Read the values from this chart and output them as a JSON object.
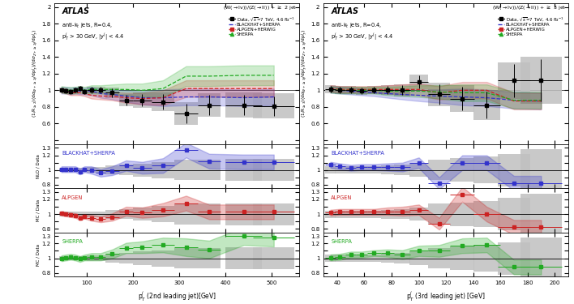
{
  "left": {
    "xlabel": "p$_{T}^{j}$ (2nd leading jet)[GeV]",
    "ylabel_main": "(1/R$_{\\geq2}$)(d$\\sigma_{W+\\geq2j}$/dp$_{T}^{j}$)/(d$\\sigma_{Z+\\geq2j}$/dp$_{T}^{j}$)",
    "title_text": "(W($\\rightarrow$lv))/(Z($\\rightarrow$l$^{}$l)) + $\\geq$ 2 jet",
    "info_line1": "anti-k$_{t}$ jets, R=0.4,",
    "info_line2": "p$_{T}^{j}$ > 30 GeV, |y$^{j}$| < 4.4",
    "xlim": [
      30,
      560
    ],
    "ylim_main": [
      0.35,
      2.05
    ],
    "ylim_ratio": [
      0.75,
      1.35
    ],
    "data_x": [
      45,
      55,
      65,
      75,
      85,
      95,
      110,
      130,
      155,
      185,
      220,
      265,
      315,
      365,
      440,
      505
    ],
    "data_y": [
      1.0,
      0.99,
      0.98,
      1.0,
      1.02,
      0.98,
      1.0,
      1.0,
      0.97,
      0.88,
      0.88,
      0.86,
      0.72,
      0.82,
      0.82,
      0.81
    ],
    "data_xerr": [
      5,
      5,
      5,
      5,
      5,
      5,
      10,
      10,
      15,
      15,
      20,
      25,
      25,
      25,
      40,
      45
    ],
    "data_yerr": [
      0.03,
      0.03,
      0.03,
      0.03,
      0.03,
      0.03,
      0.04,
      0.04,
      0.05,
      0.06,
      0.07,
      0.09,
      0.12,
      0.12,
      0.12,
      0.12
    ],
    "data_sys_lo": [
      0.03,
      0.03,
      0.03,
      0.03,
      0.03,
      0.03,
      0.04,
      0.04,
      0.06,
      0.07,
      0.09,
      0.11,
      0.14,
      0.14,
      0.15,
      0.15
    ],
    "data_sys_hi": [
      0.03,
      0.03,
      0.03,
      0.03,
      0.03,
      0.03,
      0.04,
      0.04,
      0.06,
      0.07,
      0.09,
      0.11,
      0.14,
      0.14,
      0.15,
      0.15
    ],
    "bhs_x": [
      45,
      55,
      65,
      75,
      85,
      95,
      110,
      130,
      155,
      185,
      220,
      265,
      315,
      365,
      440,
      505
    ],
    "bhs_y": [
      1.0,
      1.0,
      0.99,
      1.0,
      0.99,
      0.99,
      0.99,
      0.96,
      0.95,
      0.93,
      0.91,
      0.91,
      0.92,
      0.92,
      0.91,
      0.92
    ],
    "bhs_band_lo": [
      0.04,
      0.04,
      0.04,
      0.04,
      0.04,
      0.04,
      0.05,
      0.05,
      0.06,
      0.07,
      0.08,
      0.1,
      0.1,
      0.1,
      0.1,
      0.1
    ],
    "bhs_band_hi": [
      0.04,
      0.04,
      0.04,
      0.04,
      0.04,
      0.04,
      0.05,
      0.05,
      0.06,
      0.07,
      0.08,
      0.1,
      0.1,
      0.1,
      0.1,
      0.1
    ],
    "alp_x": [
      45,
      55,
      65,
      75,
      85,
      95,
      110,
      130,
      155,
      185,
      220,
      265,
      315,
      365,
      440,
      505
    ],
    "alp_y": [
      1.0,
      0.99,
      0.97,
      0.97,
      0.97,
      0.96,
      0.94,
      0.93,
      0.93,
      0.91,
      0.9,
      0.91,
      1.02,
      1.02,
      1.02,
      1.02
    ],
    "alp_band_lo": [
      0.03,
      0.03,
      0.03,
      0.03,
      0.03,
      0.03,
      0.04,
      0.04,
      0.05,
      0.06,
      0.07,
      0.09,
      0.1,
      0.1,
      0.1,
      0.1
    ],
    "alp_band_hi": [
      0.03,
      0.03,
      0.03,
      0.03,
      0.03,
      0.03,
      0.04,
      0.04,
      0.05,
      0.06,
      0.07,
      0.09,
      0.1,
      0.1,
      0.1,
      0.1
    ],
    "shp_x": [
      45,
      55,
      65,
      75,
      85,
      95,
      110,
      130,
      155,
      185,
      220,
      265,
      315,
      365,
      440,
      505
    ],
    "shp_y": [
      1.01,
      1.0,
      1.0,
      1.0,
      1.01,
      1.0,
      1.01,
      1.01,
      1.01,
      1.01,
      1.0,
      1.02,
      1.17,
      1.17,
      1.18,
      1.18
    ],
    "shp_band_lo": [
      0.04,
      0.04,
      0.04,
      0.04,
      0.04,
      0.04,
      0.05,
      0.05,
      0.06,
      0.07,
      0.08,
      0.1,
      0.12,
      0.12,
      0.12,
      0.12
    ],
    "shp_band_hi": [
      0.04,
      0.04,
      0.04,
      0.04,
      0.04,
      0.04,
      0.05,
      0.05,
      0.06,
      0.07,
      0.08,
      0.1,
      0.12,
      0.12,
      0.12,
      0.12
    ],
    "ratio_bhs_x": [
      45,
      55,
      65,
      75,
      85,
      95,
      110,
      130,
      155,
      185,
      220,
      265,
      315,
      365,
      440,
      505
    ],
    "ratio_bhs_y": [
      1.01,
      1.01,
      1.01,
      1.01,
      0.98,
      1.01,
      1.0,
      0.96,
      0.99,
      1.06,
      1.03,
      1.06,
      1.27,
      1.12,
      1.11,
      1.11
    ],
    "ratio_bhs_band_lo": [
      0.04,
      0.04,
      0.04,
      0.04,
      0.04,
      0.04,
      0.05,
      0.05,
      0.06,
      0.07,
      0.08,
      0.1,
      0.1,
      0.1,
      0.1,
      0.1
    ],
    "ratio_bhs_band_hi": [
      0.04,
      0.04,
      0.04,
      0.04,
      0.04,
      0.04,
      0.05,
      0.05,
      0.06,
      0.07,
      0.08,
      0.1,
      0.1,
      0.1,
      0.1,
      0.1
    ],
    "ratio_alp_x": [
      45,
      55,
      65,
      75,
      85,
      95,
      110,
      130,
      155,
      185,
      220,
      265,
      315,
      365,
      440,
      505
    ],
    "ratio_alp_y": [
      1.01,
      1.0,
      0.99,
      0.98,
      0.95,
      0.97,
      0.95,
      0.93,
      0.96,
      1.04,
      1.02,
      1.06,
      1.15,
      1.03,
      1.03,
      1.03
    ],
    "ratio_alp_band_lo": [
      0.03,
      0.03,
      0.03,
      0.03,
      0.03,
      0.03,
      0.04,
      0.04,
      0.05,
      0.06,
      0.07,
      0.09,
      0.1,
      0.1,
      0.1,
      0.1
    ],
    "ratio_alp_band_hi": [
      0.03,
      0.03,
      0.03,
      0.03,
      0.03,
      0.03,
      0.04,
      0.04,
      0.05,
      0.06,
      0.07,
      0.09,
      0.1,
      0.1,
      0.1,
      0.1
    ],
    "ratio_shp_x": [
      45,
      55,
      65,
      75,
      85,
      95,
      110,
      130,
      155,
      185,
      220,
      265,
      315,
      365,
      440,
      505
    ],
    "ratio_shp_y": [
      1.0,
      1.01,
      1.02,
      1.01,
      0.99,
      1.01,
      1.02,
      1.02,
      1.06,
      1.14,
      1.15,
      1.18,
      1.15,
      1.12,
      1.3,
      1.28
    ],
    "ratio_shp_band_lo": [
      0.04,
      0.04,
      0.04,
      0.04,
      0.04,
      0.04,
      0.05,
      0.05,
      0.06,
      0.07,
      0.08,
      0.1,
      0.12,
      0.12,
      0.12,
      0.12
    ],
    "ratio_shp_band_hi": [
      0.04,
      0.04,
      0.04,
      0.04,
      0.04,
      0.04,
      0.05,
      0.05,
      0.06,
      0.07,
      0.08,
      0.1,
      0.12,
      0.12,
      0.12,
      0.12
    ]
  },
  "right": {
    "xlabel": "p$_{T}^{j}$ (3rd leading jet) [GeV]",
    "ylabel_main": "(1/R$_{\\geq3}$)(d$\\sigma_{W+\\geq3j}$/dp$_{T}^{j}$)/(d$\\sigma_{Z+\\geq3j}$/dp$_{T}^{j}$)",
    "title_text": "(W($\\rightarrow$lv))/(Z($\\rightarrow$l$^{}$l)) + $\\geq$ 3 jet",
    "info_line1": "anti-k$_{t}$ jets, R=0.4,",
    "info_line2": "p$_{T}^{j}$ > 30 GeV, |y$^{j}$| < 4.4",
    "xlim": [
      30,
      210
    ],
    "ylim_main": [
      0.35,
      2.05
    ],
    "ylim_ratio": [
      0.75,
      1.35
    ],
    "data_x": [
      35,
      42,
      50,
      58,
      67,
      77,
      88,
      100,
      115,
      132,
      150,
      170,
      190
    ],
    "data_y": [
      1.01,
      1.0,
      1.0,
      0.99,
      1.0,
      1.0,
      1.0,
      1.1,
      0.95,
      0.9,
      0.82,
      1.12,
      1.12
    ],
    "data_xerr": [
      4,
      4,
      4,
      4,
      5,
      5,
      6,
      7,
      8,
      9,
      10,
      12,
      15
    ],
    "data_yerr": [
      0.04,
      0.04,
      0.04,
      0.04,
      0.04,
      0.05,
      0.06,
      0.08,
      0.12,
      0.14,
      0.16,
      0.2,
      0.25
    ],
    "data_sys_lo": [
      0.05,
      0.05,
      0.05,
      0.05,
      0.05,
      0.06,
      0.07,
      0.09,
      0.14,
      0.16,
      0.18,
      0.22,
      0.28
    ],
    "data_sys_hi": [
      0.05,
      0.05,
      0.05,
      0.05,
      0.05,
      0.06,
      0.07,
      0.09,
      0.14,
      0.16,
      0.18,
      0.22,
      0.28
    ],
    "bhs_x": [
      35,
      42,
      50,
      58,
      67,
      77,
      88,
      100,
      115,
      132,
      150,
      170,
      190
    ],
    "bhs_y": [
      1.01,
      1.0,
      0.99,
      0.98,
      0.97,
      0.96,
      0.95,
      0.94,
      0.93,
      0.92,
      0.91,
      0.88,
      0.87
    ],
    "bhs_band_lo": [
      0.04,
      0.04,
      0.04,
      0.04,
      0.04,
      0.05,
      0.06,
      0.07,
      0.08,
      0.1,
      0.1,
      0.1,
      0.1
    ],
    "bhs_band_hi": [
      0.04,
      0.04,
      0.04,
      0.04,
      0.04,
      0.05,
      0.06,
      0.07,
      0.08,
      0.1,
      0.1,
      0.1,
      0.1
    ],
    "alp_x": [
      35,
      42,
      50,
      58,
      67,
      77,
      88,
      100,
      115,
      132,
      150,
      170,
      190
    ],
    "alp_y": [
      1.02,
      1.01,
      1.01,
      1.01,
      1.01,
      1.01,
      1.01,
      1.01,
      0.97,
      1.0,
      1.0,
      0.87,
      0.87
    ],
    "alp_band_lo": [
      0.04,
      0.04,
      0.04,
      0.04,
      0.04,
      0.05,
      0.06,
      0.07,
      0.08,
      0.1,
      0.1,
      0.1,
      0.1
    ],
    "alp_band_hi": [
      0.04,
      0.04,
      0.04,
      0.04,
      0.04,
      0.05,
      0.06,
      0.07,
      0.08,
      0.1,
      0.1,
      0.1,
      0.1
    ],
    "shp_x": [
      35,
      42,
      50,
      58,
      67,
      77,
      88,
      100,
      115,
      132,
      150,
      170,
      190
    ],
    "shp_y": [
      1.01,
      1.0,
      1.0,
      1.0,
      1.0,
      0.99,
      0.99,
      0.99,
      0.98,
      0.97,
      0.97,
      0.88,
      0.88
    ],
    "shp_band_lo": [
      0.04,
      0.04,
      0.04,
      0.04,
      0.04,
      0.05,
      0.06,
      0.07,
      0.08,
      0.1,
      0.1,
      0.1,
      0.1
    ],
    "shp_band_hi": [
      0.04,
      0.04,
      0.04,
      0.04,
      0.04,
      0.05,
      0.06,
      0.07,
      0.08,
      0.1,
      0.1,
      0.1,
      0.1
    ],
    "ratio_bhs_x": [
      35,
      42,
      50,
      58,
      67,
      77,
      88,
      100,
      115,
      132,
      150,
      170,
      190
    ],
    "ratio_bhs_y": [
      1.07,
      1.05,
      1.03,
      1.04,
      1.04,
      1.04,
      1.04,
      1.1,
      0.82,
      1.1,
      1.1,
      0.82,
      0.82
    ],
    "ratio_bhs_band_lo": [
      0.04,
      0.04,
      0.04,
      0.04,
      0.04,
      0.05,
      0.06,
      0.07,
      0.08,
      0.1,
      0.1,
      0.1,
      0.1
    ],
    "ratio_bhs_band_hi": [
      0.04,
      0.04,
      0.04,
      0.04,
      0.04,
      0.05,
      0.06,
      0.07,
      0.08,
      0.1,
      0.1,
      0.1,
      0.1
    ],
    "ratio_alp_x": [
      35,
      42,
      50,
      58,
      67,
      77,
      88,
      100,
      115,
      132,
      150,
      170,
      190
    ],
    "ratio_alp_y": [
      1.02,
      1.03,
      1.03,
      1.03,
      1.03,
      1.04,
      1.04,
      1.06,
      0.87,
      1.27,
      1.0,
      0.82,
      0.82
    ],
    "ratio_alp_band_lo": [
      0.04,
      0.04,
      0.04,
      0.04,
      0.04,
      0.05,
      0.06,
      0.07,
      0.08,
      0.1,
      0.1,
      0.1,
      0.1
    ],
    "ratio_alp_band_hi": [
      0.04,
      0.04,
      0.04,
      0.04,
      0.04,
      0.05,
      0.06,
      0.07,
      0.08,
      0.1,
      0.1,
      0.1,
      0.1
    ],
    "ratio_shp_x": [
      35,
      42,
      50,
      58,
      67,
      77,
      88,
      100,
      115,
      132,
      150,
      170,
      190
    ],
    "ratio_shp_y": [
      1.01,
      1.02,
      1.05,
      1.05,
      1.07,
      1.07,
      1.05,
      1.1,
      1.1,
      1.17,
      1.18,
      0.88,
      0.88
    ],
    "ratio_shp_band_lo": [
      0.04,
      0.04,
      0.04,
      0.04,
      0.04,
      0.05,
      0.06,
      0.07,
      0.08,
      0.1,
      0.1,
      0.1,
      0.1
    ],
    "ratio_shp_band_hi": [
      0.04,
      0.04,
      0.04,
      0.04,
      0.04,
      0.05,
      0.06,
      0.07,
      0.08,
      0.1,
      0.1,
      0.1,
      0.1
    ]
  },
  "color_data": "#000000",
  "color_bhs": "#3333cc",
  "color_alp": "#cc2222",
  "color_shp": "#22aa22",
  "color_gray_fill": "#c0c0c0",
  "info_line1": "anti-k$_{t}$ jets, R=0.4,",
  "info_line2": "p$_{T}^{j}$ > 30 GeV, |y$^{j}$| < 4.4",
  "legend_data": "Data, $\\sqrt{s}$=7 TeV, 4.6 fb$^{-1}$",
  "legend_bhs": "BLACKHAT+SHERPA",
  "legend_alp": "ALPGEN+HERWIG",
  "legend_shp": "SHERPA"
}
